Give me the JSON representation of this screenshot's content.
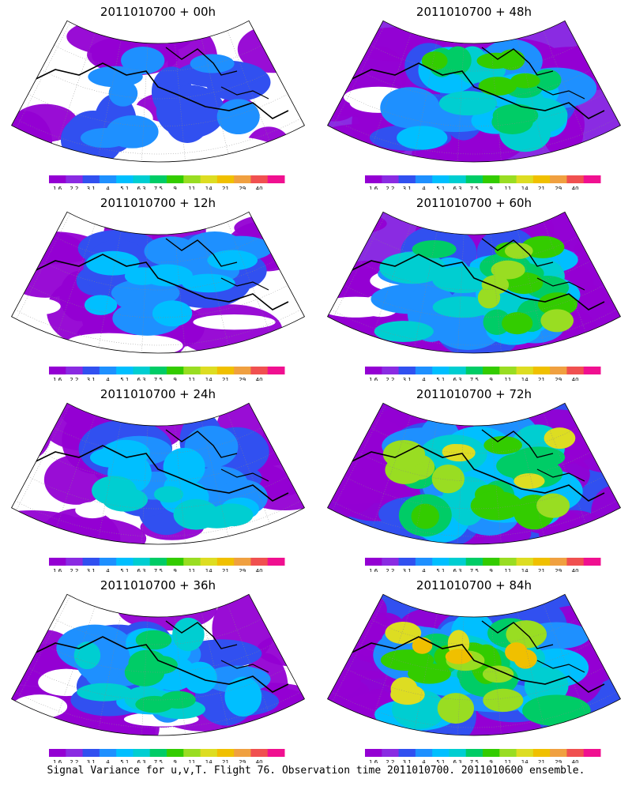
{
  "palette": {
    "labels": [
      "1.6",
      "2.2",
      "3.1",
      "4",
      "5.1",
      "6.3",
      "7.5",
      "9",
      "11",
      "14",
      "21",
      "29",
      "40"
    ],
    "colors": [
      "#9400d3",
      "#8a2be2",
      "#3150f0",
      "#1e90ff",
      "#00bfff",
      "#00ced1",
      "#00cc66",
      "#33cc00",
      "#99dd22",
      "#dddd22",
      "#f0c000",
      "#f0a040",
      "#f05050",
      "#f01090"
    ]
  },
  "panels": [
    {
      "title": "2011010700 + 00h",
      "level": 0
    },
    {
      "title": "2011010700 + 48h",
      "level": 4
    },
    {
      "title": "2011010700 + 12h",
      "level": 1
    },
    {
      "title": "2011010700 + 60h",
      "level": 5
    },
    {
      "title": "2011010700 + 24h",
      "level": 2
    },
    {
      "title": "2011010700 + 72h",
      "level": 6
    },
    {
      "title": "2011010700 + 36h",
      "level": 3
    },
    {
      "title": "2011010700 + 84h",
      "level": 7
    }
  ],
  "caption": "Signal Variance for u,v,T. Flight 76. Observation time 2011010700. 2011010600 ensemble."
}
